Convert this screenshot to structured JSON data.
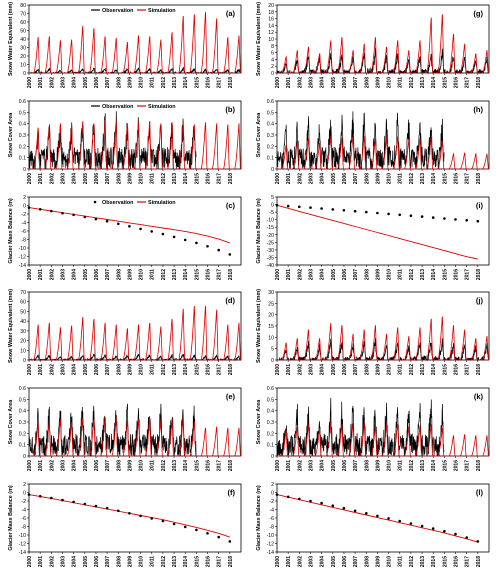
{
  "colors": {
    "observation": "#000000",
    "simulation": "#e00000"
  },
  "years": [
    "2000",
    "2001",
    "2002",
    "2003",
    "2004",
    "2005",
    "2006",
    "2007",
    "2008",
    "2009",
    "2010",
    "2011",
    "2012",
    "2013",
    "2014",
    "2015",
    "2016",
    "2017",
    "2018"
  ],
  "legend": {
    "observation": "Observation",
    "simulation": "Simulation"
  },
  "chart_data": [
    {
      "panel": "(a)",
      "type": "line",
      "ylabel": "Snow Water Equivalent (mm)",
      "ylim": [
        0,
        80
      ],
      "yticks": [
        0,
        10,
        20,
        30,
        40,
        50,
        60,
        70,
        80
      ],
      "legend": true,
      "series": [
        {
          "name": "Observation",
          "kind": "line",
          "peaks": [
            5,
            6,
            4,
            5,
            6,
            7,
            6,
            5,
            6,
            7,
            6,
            5,
            6,
            7,
            6,
            5,
            6,
            5,
            5
          ]
        },
        {
          "name": "Simulation",
          "kind": "line",
          "peaks": [
            44,
            45,
            40,
            41,
            58,
            55,
            45,
            43,
            38,
            46,
            45,
            41,
            50,
            70,
            72,
            75,
            67,
            44,
            46
          ]
        }
      ]
    },
    {
      "panel": "(g)",
      "type": "line",
      "ylabel": "Snow Water Equivalent (mm)",
      "ylim": [
        0,
        20
      ],
      "yticks": [
        0,
        2,
        4,
        6,
        8,
        10,
        12,
        14,
        16,
        18,
        20
      ],
      "legend": false,
      "series": [
        {
          "name": "Observation",
          "kind": "line",
          "peaks": [
            4,
            5,
            6,
            6,
            7,
            7,
            6,
            7,
            8,
            6,
            7,
            5,
            6,
            7,
            8,
            6,
            6,
            5,
            6
          ]
        },
        {
          "name": "Simulation",
          "kind": "line",
          "peaks": [
            5,
            7,
            8,
            6,
            10,
            11,
            7,
            9,
            11,
            8,
            10,
            7,
            10,
            17,
            18,
            12,
            9,
            6,
            7
          ]
        }
      ]
    },
    {
      "panel": "(b)",
      "type": "line",
      "ylabel": "Snow Cover Area",
      "ylim": [
        0,
        0.6
      ],
      "yticks": [
        0,
        0.1,
        0.2,
        0.3,
        0.4,
        0.5,
        0.6
      ],
      "legend": true,
      "series": [
        {
          "name": "Observation",
          "kind": "noisy",
          "peaks": [
            0.38,
            0.4,
            0.42,
            0.4,
            0.44,
            0.42,
            0.45,
            0.44,
            0.42,
            0.43,
            0.44,
            0.42,
            0.43,
            0.44,
            0.4
          ]
        },
        {
          "name": "Simulation",
          "kind": "line",
          "peaks": [
            0.38,
            0.4,
            0.42,
            0.4,
            0.44,
            0.42,
            0.45,
            0.44,
            0.42,
            0.43,
            0.44,
            0.42,
            0.43,
            0.44,
            0.41,
            0.43,
            0.42,
            0.41,
            0.42
          ]
        }
      ]
    },
    {
      "panel": "(h)",
      "type": "line",
      "ylabel": "Snow Cover Area",
      "ylim": [
        0,
        0.6
      ],
      "yticks": [
        0,
        0.1,
        0.2,
        0.3,
        0.4,
        0.5,
        0.6
      ],
      "legend": false,
      "series": [
        {
          "name": "Observation",
          "kind": "noisy",
          "peaks": [
            0.36,
            0.4,
            0.42,
            0.38,
            0.44,
            0.43,
            0.46,
            0.45,
            0.42,
            0.43,
            0.45,
            0.42,
            0.44,
            0.45,
            0.4
          ]
        },
        {
          "name": "Simulation",
          "kind": "line",
          "peaks": [
            0.22,
            0.26,
            0.28,
            0.24,
            0.3,
            0.29,
            0.3,
            0.3,
            0.28,
            0.29,
            0.3,
            0.27,
            0.28,
            0.29,
            0.26,
            0.14,
            0.15,
            0.14,
            0.14
          ]
        }
      ]
    },
    {
      "panel": "(c)",
      "type": "scatter_line",
      "ylabel": "Glacier Mass Balance (m)",
      "ylim": [
        -14,
        2
      ],
      "yticks": [
        -14,
        -12,
        -10,
        -8,
        -6,
        -4,
        -2,
        0,
        2
      ],
      "legend": true,
      "obs": [
        -0.5,
        -0.9,
        -1.3,
        -1.8,
        -2.2,
        -2.7,
        -3.2,
        -3.7,
        -4.3,
        -4.9,
        -5.5,
        -6.1,
        -6.7,
        -7.4,
        -8.1,
        -8.8,
        -9.6,
        -10.5,
        -11.5
      ],
      "sim": [
        -0.5,
        -0.9,
        -1.3,
        -1.7,
        -2.1,
        -2.5,
        -2.9,
        -3.3,
        -3.7,
        -4.1,
        -4.5,
        -4.9,
        -5.3,
        -5.7,
        -6.1,
        -6.6,
        -7.2,
        -7.9,
        -8.8
      ]
    },
    {
      "panel": "(i)",
      "type": "scatter_line",
      "ylabel": "Glacier Mass Balance (m)",
      "ylim": [
        -40,
        5
      ],
      "yticks": [
        -40,
        -35,
        -30,
        -25,
        -20,
        -15,
        -10,
        -5,
        0,
        5
      ],
      "legend": false,
      "obs": [
        -0.5,
        -1,
        -1.5,
        -2,
        -2.6,
        -3.2,
        -3.8,
        -4.4,
        -5,
        -5.6,
        -6.2,
        -6.8,
        -7.4,
        -8,
        -8.6,
        -9.2,
        -9.8,
        -10.4,
        -11
      ],
      "sim": [
        -0.5,
        -2.5,
        -4.5,
        -6.5,
        -8.5,
        -10.5,
        -12.5,
        -14.5,
        -16.5,
        -18.5,
        -20.5,
        -22.5,
        -24.5,
        -26.5,
        -28.5,
        -30.5,
        -32.5,
        -34.5,
        -36
      ]
    },
    {
      "panel": "(d)",
      "type": "line",
      "ylabel": "Snow Water Equivalent (mm)",
      "ylim": [
        0,
        70
      ],
      "yticks": [
        0,
        10,
        20,
        30,
        40,
        50,
        60,
        70
      ],
      "legend": false,
      "series": [
        {
          "name": "Observation",
          "kind": "line",
          "peaks": [
            5,
            6,
            4,
            5,
            6,
            7,
            6,
            5,
            6,
            7,
            6,
            5,
            6,
            7,
            6,
            5,
            6,
            5,
            5
          ]
        },
        {
          "name": "Simulation",
          "kind": "line",
          "peaks": [
            38,
            40,
            35,
            37,
            46,
            44,
            40,
            38,
            34,
            38,
            40,
            36,
            44,
            55,
            58,
            58,
            54,
            38,
            40
          ]
        }
      ]
    },
    {
      "panel": "(j)",
      "type": "line",
      "ylabel": "Snow Water Equivalent (mm)",
      "ylim": [
        0,
        30
      ],
      "yticks": [
        0,
        5,
        10,
        15,
        20,
        25,
        30
      ],
      "legend": false,
      "series": [
        {
          "name": "Observation",
          "kind": "line",
          "peaks": [
            6,
            7,
            9,
            8,
            10,
            10,
            8,
            9,
            11,
            8,
            10,
            7,
            9,
            10,
            11,
            8,
            8,
            7,
            8
          ]
        },
        {
          "name": "Simulation",
          "kind": "line",
          "peaks": [
            8,
            10,
            14,
            10,
            17,
            16,
            12,
            14,
            16,
            12,
            15,
            11,
            15,
            19,
            20,
            16,
            14,
            10,
            11
          ]
        }
      ]
    },
    {
      "panel": "(e)",
      "type": "line",
      "ylabel": "Snow Cover Area",
      "ylim": [
        0,
        0.6
      ],
      "yticks": [
        0,
        0.1,
        0.2,
        0.3,
        0.4,
        0.5,
        0.6
      ],
      "legend": false,
      "series": [
        {
          "name": "Observation",
          "kind": "noisy",
          "peaks": [
            0.38,
            0.4,
            0.42,
            0.4,
            0.44,
            0.42,
            0.45,
            0.44,
            0.42,
            0.43,
            0.44,
            0.42,
            0.43,
            0.44,
            0.4
          ]
        },
        {
          "name": "Simulation",
          "kind": "line",
          "peaks": [
            0.3,
            0.32,
            0.34,
            0.31,
            0.35,
            0.34,
            0.36,
            0.35,
            0.33,
            0.34,
            0.35,
            0.33,
            0.34,
            0.35,
            0.32,
            0.26,
            0.27,
            0.26,
            0.26
          ]
        }
      ]
    },
    {
      "panel": "(k)",
      "type": "line",
      "ylabel": "Snow Cover Area",
      "ylim": [
        0,
        0.6
      ],
      "yticks": [
        0,
        0.1,
        0.2,
        0.3,
        0.4,
        0.5,
        0.6
      ],
      "legend": false,
      "series": [
        {
          "name": "Observation",
          "kind": "noisy",
          "peaks": [
            0.36,
            0.4,
            0.42,
            0.38,
            0.44,
            0.43,
            0.46,
            0.45,
            0.42,
            0.43,
            0.45,
            0.42,
            0.44,
            0.45,
            0.4
          ]
        },
        {
          "name": "Simulation",
          "kind": "line",
          "peaks": [
            0.24,
            0.27,
            0.29,
            0.25,
            0.3,
            0.29,
            0.3,
            0.3,
            0.28,
            0.29,
            0.3,
            0.27,
            0.28,
            0.29,
            0.26,
            0.19,
            0.2,
            0.19,
            0.19
          ]
        }
      ]
    },
    {
      "panel": "(f)",
      "type": "scatter_line",
      "ylabel": "Glacier Mass Balance (m)",
      "ylim": [
        -14,
        2
      ],
      "yticks": [
        -14,
        -12,
        -10,
        -8,
        -6,
        -4,
        -2,
        0,
        2
      ],
      "legend": false,
      "obs": [
        -0.5,
        -0.9,
        -1.3,
        -1.8,
        -2.2,
        -2.7,
        -3.2,
        -3.7,
        -4.3,
        -4.9,
        -5.5,
        -6.1,
        -6.7,
        -7.4,
        -8.1,
        -8.8,
        -9.6,
        -10.5,
        -11.5
      ],
      "sim": [
        -0.5,
        -0.95,
        -1.4,
        -1.9,
        -2.4,
        -2.9,
        -3.4,
        -3.9,
        -4.4,
        -4.9,
        -5.4,
        -5.9,
        -6.4,
        -7,
        -7.6,
        -8.2,
        -8.9,
        -9.6,
        -10.5
      ]
    },
    {
      "panel": "(l)",
      "type": "scatter_line",
      "ylabel": "Glacier Mass Balance (m)",
      "ylim": [
        -14,
        2
      ],
      "yticks": [
        -14,
        -12,
        -10,
        -8,
        -6,
        -4,
        -2,
        0,
        2
      ],
      "legend": false,
      "obs": [
        -0.5,
        -1,
        -1.5,
        -2,
        -2.5,
        -3.1,
        -3.7,
        -4.3,
        -4.9,
        -5.5,
        -6.1,
        -6.7,
        -7.3,
        -7.9,
        -8.5,
        -9.1,
        -9.8,
        -10.6,
        -11.5
      ],
      "sim": [
        -0.5,
        -1.1,
        -1.7,
        -2.3,
        -2.9,
        -3.5,
        -4.1,
        -4.7,
        -5.3,
        -5.9,
        -6.5,
        -7.1,
        -7.7,
        -8.3,
        -8.9,
        -9.5,
        -10.2,
        -10.9,
        -11.7
      ]
    }
  ]
}
